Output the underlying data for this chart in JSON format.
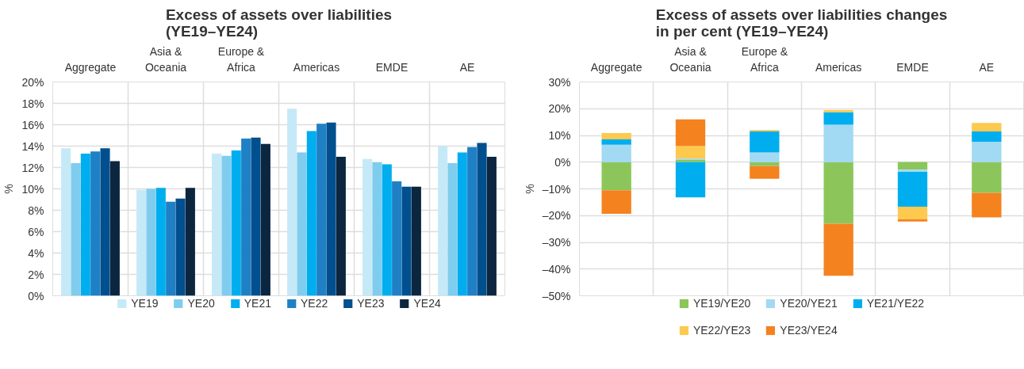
{
  "chart_data": [
    {
      "type": "bar",
      "title": "Excess of assets over liabilities (YE19–YE24)",
      "ylabel": "%",
      "categories": [
        "Aggregate",
        "Asia & Oceania",
        "Europe & Africa",
        "Americas",
        "EMDE",
        "AE"
      ],
      "series": [
        {
          "name": "YE19",
          "color": "#c6e9f8",
          "values": [
            13.8,
            9.9,
            13.3,
            17.5,
            12.8,
            14.0
          ]
        },
        {
          "name": "YE20",
          "color": "#7fcdee",
          "values": [
            12.4,
            10.0,
            13.1,
            13.4,
            12.5,
            12.4
          ]
        },
        {
          "name": "YE21",
          "color": "#00aeef",
          "values": [
            13.3,
            10.1,
            13.6,
            15.4,
            12.3,
            13.4
          ]
        },
        {
          "name": "YE22",
          "color": "#1f80c5",
          "values": [
            13.5,
            8.8,
            14.7,
            16.1,
            10.7,
            13.9
          ]
        },
        {
          "name": "YE23",
          "color": "#004f8e",
          "values": [
            13.8,
            9.1,
            14.8,
            16.2,
            10.2,
            14.3
          ]
        },
        {
          "name": "YE24",
          "color": "#0c2640",
          "values": [
            12.6,
            10.1,
            14.2,
            13.0,
            10.2,
            13.0
          ]
        }
      ],
      "ylim": [
        0,
        20
      ],
      "yticks": [
        {
          "value": 0,
          "label": "0%"
        },
        {
          "value": 2,
          "label": "2%"
        },
        {
          "value": 4,
          "label": "4%"
        },
        {
          "value": 6,
          "label": "6%"
        },
        {
          "value": 8,
          "label": "8%"
        },
        {
          "value": 10,
          "label": "10%"
        },
        {
          "value": 12,
          "label": "12%"
        },
        {
          "value": 14,
          "label": "14%"
        },
        {
          "value": 16,
          "label": "16%"
        },
        {
          "value": 18,
          "label": "18%"
        },
        {
          "value": 20,
          "label": "20%"
        }
      ],
      "grid": true,
      "legend": "bottom"
    },
    {
      "type": "bar",
      "stacked": true,
      "title": "Excess of assets over liabilities changes in per cent (YE19–YE24)",
      "ylabel": "%",
      "categories": [
        "Aggregate",
        "Asia & Oceania",
        "Europe & Africa",
        "Americas",
        "EMDE",
        "AE"
      ],
      "series": [
        {
          "name": "YE19/YE20",
          "color": "#8cc65a",
          "values": [
            -10.5,
            0.8,
            -1.5,
            -23.0,
            -2.8,
            -11.5
          ]
        },
        {
          "name": "YE20/YE21",
          "color": "#a2d9f3",
          "values": [
            6.5,
            0.5,
            3.6,
            14.0,
            -0.8,
            7.6
          ]
        },
        {
          "name": "YE21/YE22",
          "color": "#00aeef",
          "values": [
            2.0,
            -13.2,
            7.9,
            4.7,
            -13.1,
            3.9
          ]
        },
        {
          "name": "YE22/YE23",
          "color": "#fdc94f",
          "values": [
            2.4,
            4.7,
            0.5,
            0.8,
            -4.7,
            3.2
          ]
        },
        {
          "name": "YE23/YE24",
          "color": "#f4821f",
          "values": [
            -8.8,
            10.0,
            -4.7,
            -19.5,
            -0.8,
            -9.2
          ]
        }
      ],
      "ylim": [
        -50,
        30
      ],
      "yticks": [
        {
          "value": -50,
          "label": "–50%"
        },
        {
          "value": -40,
          "label": "–40%"
        },
        {
          "value": -30,
          "label": "–30%"
        },
        {
          "value": -20,
          "label": "–20%"
        },
        {
          "value": -10,
          "label": "–10%"
        },
        {
          "value": 0,
          "label": "0%"
        },
        {
          "value": 10,
          "label": "10%"
        },
        {
          "value": 20,
          "label": "20%"
        },
        {
          "value": 30,
          "label": "30%"
        }
      ],
      "grid": true,
      "legend": "bottom"
    }
  ]
}
